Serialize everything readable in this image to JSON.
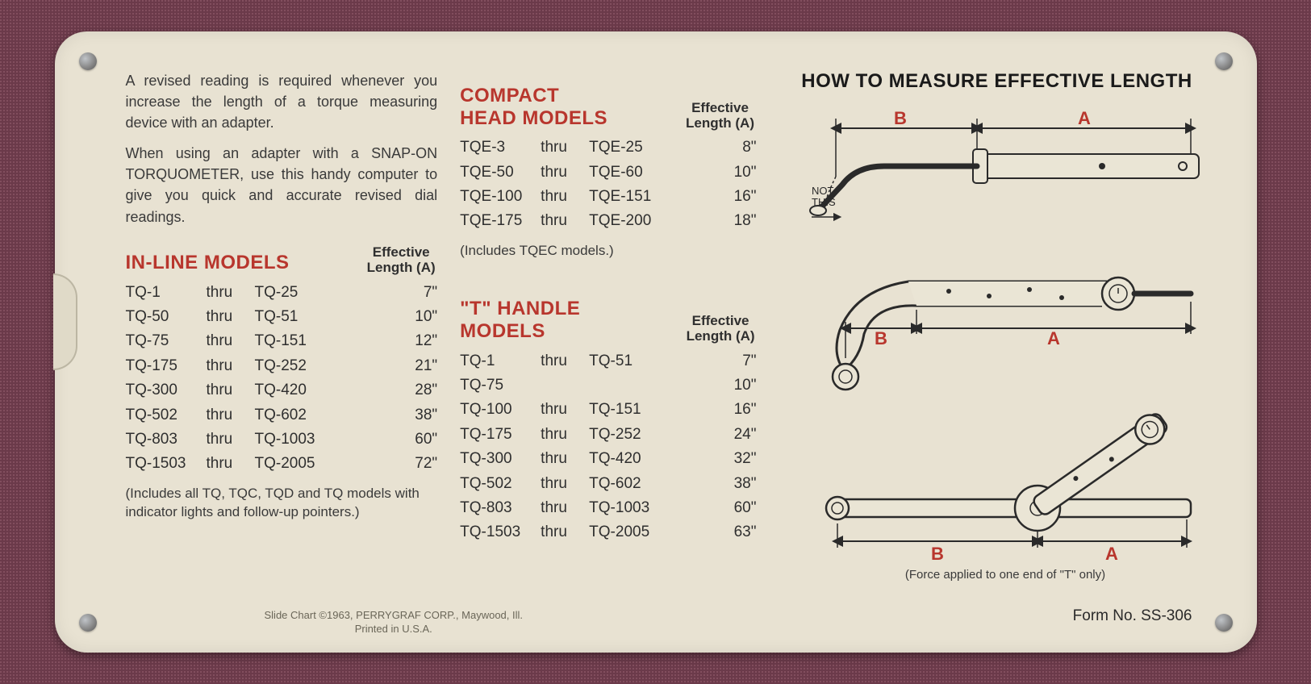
{
  "colors": {
    "card_bg": "#e8e2d2",
    "text": "#3a3a3a",
    "heading_red": "#b8362d",
    "ink": "#1a1a1a",
    "background": "#6b3a4a"
  },
  "typography": {
    "body_size_pt": 14,
    "heading_size_pt": 18,
    "title_size_pt": 18
  },
  "intro": {
    "p1": "A revised reading is required whenever you increase the length of a torque measuring device with an adapter.",
    "p2": "When using an adapter with a SNAP-ON TORQUOMETER, use this handy computer to give you quick and accurate revised dial readings."
  },
  "eff_label_line1": "Effective",
  "eff_label_line2": "Length (A)",
  "inline": {
    "title": "IN-LINE MODELS",
    "rows": [
      {
        "a": "TQ-1",
        "t": "thru",
        "b": "TQ-25",
        "len": "7\""
      },
      {
        "a": "TQ-50",
        "t": "thru",
        "b": "TQ-51",
        "len": "10\""
      },
      {
        "a": "TQ-75",
        "t": "thru",
        "b": "TQ-151",
        "len": "12\""
      },
      {
        "a": "TQ-175",
        "t": "thru",
        "b": "TQ-252",
        "len": "21\""
      },
      {
        "a": "TQ-300",
        "t": "thru",
        "b": "TQ-420",
        "len": "28\""
      },
      {
        "a": "TQ-502",
        "t": "thru",
        "b": "TQ-602",
        "len": "38\""
      },
      {
        "a": "TQ-803",
        "t": "thru",
        "b": "TQ-1003",
        "len": "60\""
      },
      {
        "a": "TQ-1503",
        "t": "thru",
        "b": "TQ-2005",
        "len": "72\""
      }
    ],
    "note": "(Includes all TQ, TQC, TQD and TQ models with indicator lights and follow-up pointers.)"
  },
  "compact": {
    "title": "COMPACT HEAD MODELS",
    "rows": [
      {
        "a": "TQE-3",
        "t": "thru",
        "b": "TQE-25",
        "len": "8\""
      },
      {
        "a": "TQE-50",
        "t": "thru",
        "b": "TQE-60",
        "len": "10\""
      },
      {
        "a": "TQE-100",
        "t": "thru",
        "b": "TQE-151",
        "len": "16\""
      },
      {
        "a": "TQE-175",
        "t": "thru",
        "b": "TQE-200",
        "len": "18\""
      }
    ],
    "note": "(Includes TQEC models.)"
  },
  "thandle": {
    "title": "\"T\" HANDLE MODELS",
    "rows": [
      {
        "a": "TQ-1",
        "t": "thru",
        "b": "TQ-51",
        "len": "7\""
      },
      {
        "a": "TQ-75",
        "t": "",
        "b": "",
        "len": "10\""
      },
      {
        "a": "TQ-100",
        "t": "thru",
        "b": "TQ-151",
        "len": "16\""
      },
      {
        "a": "TQ-175",
        "t": "thru",
        "b": "TQ-252",
        "len": "24\""
      },
      {
        "a": "TQ-300",
        "t": "thru",
        "b": "TQ-420",
        "len": "32\""
      },
      {
        "a": "TQ-502",
        "t": "thru",
        "b": "TQ-602",
        "len": "38\""
      },
      {
        "a": "TQ-803",
        "t": "thru",
        "b": "TQ-1003",
        "len": "60\""
      },
      {
        "a": "TQ-1503",
        "t": "thru",
        "b": "TQ-2005",
        "len": "63\""
      }
    ]
  },
  "diagram": {
    "title": "HOW TO MEASURE EFFECTIVE LENGTH",
    "label_A": "A",
    "label_B": "B",
    "not_this": "NOT\nTHIS",
    "caption": "(Force applied to one end of \"T\" only)"
  },
  "footer": {
    "copy_line1": "Slide Chart ©1963, PERRYGRAF CORP., Maywood, Ill.",
    "copy_line2": "Printed in U.S.A.",
    "form_no": "Form No. SS-306"
  }
}
